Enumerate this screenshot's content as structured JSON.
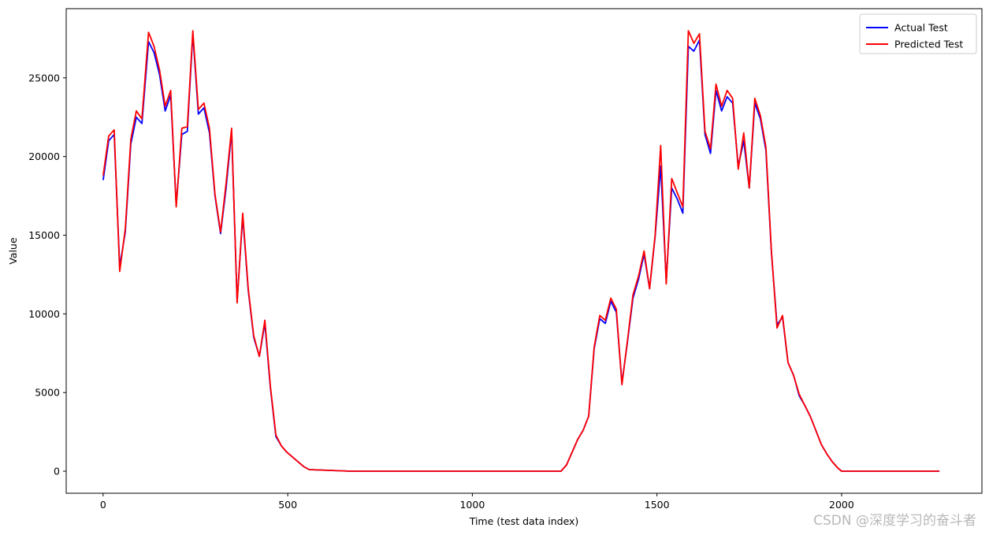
{
  "chart_data": {
    "type": "line",
    "title": "",
    "xlabel": "Time (test data index)",
    "ylabel": "Value",
    "xlim": [
      -100,
      2380
    ],
    "ylim": [
      -1400,
      29400
    ],
    "xticks": [
      0,
      500,
      1000,
      1500,
      2000
    ],
    "yticks": [
      0,
      5000,
      10000,
      15000,
      20000,
      25000
    ],
    "grid": false,
    "legend": "top-right",
    "series": [
      {
        "name": "Actual Test",
        "color": "#0000ff",
        "x": [
          0,
          15,
          30,
          45,
          60,
          75,
          90,
          105,
          123,
          138,
          153,
          168,
          183,
          198,
          213,
          228,
          243,
          258,
          273,
          288,
          303,
          318,
          333,
          348,
          363,
          378,
          393,
          408,
          423,
          438,
          453,
          468,
          483,
          498,
          513,
          528,
          543,
          558,
          670,
          1240,
          1255,
          1270,
          1285,
          1300,
          1315,
          1330,
          1345,
          1360,
          1375,
          1390,
          1405,
          1420,
          1435,
          1450,
          1465,
          1480,
          1495,
          1510,
          1525,
          1540,
          1555,
          1570,
          1585,
          1600,
          1615,
          1630,
          1645,
          1660,
          1675,
          1690,
          1705,
          1720,
          1735,
          1750,
          1765,
          1780,
          1795,
          1810,
          1825,
          1840,
          1855,
          1870,
          1885,
          1900,
          1915,
          1930,
          1945,
          1960,
          1975,
          1990,
          2000,
          2265
        ],
        "values": [
          18500,
          21000,
          21400,
          13000,
          15200,
          20800,
          22500,
          22100,
          27300,
          26600,
          25200,
          22900,
          23900,
          16900,
          21400,
          21600,
          27800,
          22700,
          23100,
          21500,
          17500,
          15100,
          18000,
          21600,
          10800,
          16200,
          11500,
          8500,
          7300,
          9400,
          5300,
          2200,
          1600,
          1200,
          900,
          600,
          300,
          100,
          0,
          0,
          400,
          1200,
          2000,
          2600,
          3500,
          7800,
          9700,
          9400,
          10800,
          10100,
          5600,
          8200,
          11000,
          12200,
          13800,
          11600,
          14900,
          19400,
          12100,
          18000,
          17300,
          16400,
          27000,
          26700,
          27400,
          21400,
          20200,
          24200,
          22900,
          23800,
          23400,
          19400,
          21000,
          18000,
          23400,
          22400,
          20400,
          13900,
          9300,
          9800,
          6900,
          6100,
          4800,
          4200,
          3500,
          2600,
          1700,
          1100,
          600,
          200,
          0,
          0
        ]
      },
      {
        "name": "Predicted Test",
        "color": "#ff0000",
        "x": [
          0,
          15,
          30,
          45,
          60,
          75,
          90,
          105,
          123,
          138,
          153,
          168,
          183,
          198,
          213,
          228,
          243,
          258,
          273,
          288,
          303,
          318,
          333,
          348,
          363,
          378,
          393,
          408,
          423,
          438,
          453,
          468,
          483,
          498,
          513,
          528,
          543,
          558,
          670,
          1240,
          1255,
          1270,
          1285,
          1300,
          1315,
          1330,
          1345,
          1360,
          1375,
          1390,
          1405,
          1420,
          1435,
          1450,
          1465,
          1480,
          1495,
          1510,
          1525,
          1540,
          1555,
          1570,
          1585,
          1600,
          1615,
          1630,
          1645,
          1660,
          1675,
          1690,
          1705,
          1720,
          1735,
          1750,
          1765,
          1780,
          1795,
          1810,
          1825,
          1840,
          1855,
          1870,
          1885,
          1900,
          1915,
          1930,
          1945,
          1960,
          1975,
          1990,
          2000,
          2265
        ],
        "values": [
          18800,
          21300,
          21700,
          12700,
          15400,
          21100,
          22900,
          22400,
          27900,
          27000,
          25500,
          23200,
          24200,
          16800,
          21800,
          21900,
          28000,
          23000,
          23400,
          21800,
          17600,
          15200,
          18300,
          21800,
          10700,
          16400,
          11600,
          8600,
          7300,
          9600,
          5400,
          2300,
          1600,
          1200,
          900,
          600,
          300,
          100,
          0,
          0,
          400,
          1200,
          2000,
          2600,
          3500,
          7900,
          9900,
          9600,
          11000,
          10300,
          5500,
          8300,
          11200,
          12400,
          14000,
          11600,
          15000,
          20700,
          11900,
          18600,
          17700,
          16800,
          28000,
          27200,
          27800,
          21600,
          20500,
          24600,
          23200,
          24200,
          23700,
          19200,
          21500,
          18000,
          23700,
          22600,
          20600,
          14000,
          9100,
          9900,
          6900,
          6100,
          4900,
          4200,
          3500,
          2600,
          1700,
          1100,
          600,
          200,
          0,
          0
        ]
      }
    ]
  },
  "watermark": "CSDN @深度学习的奋斗者"
}
